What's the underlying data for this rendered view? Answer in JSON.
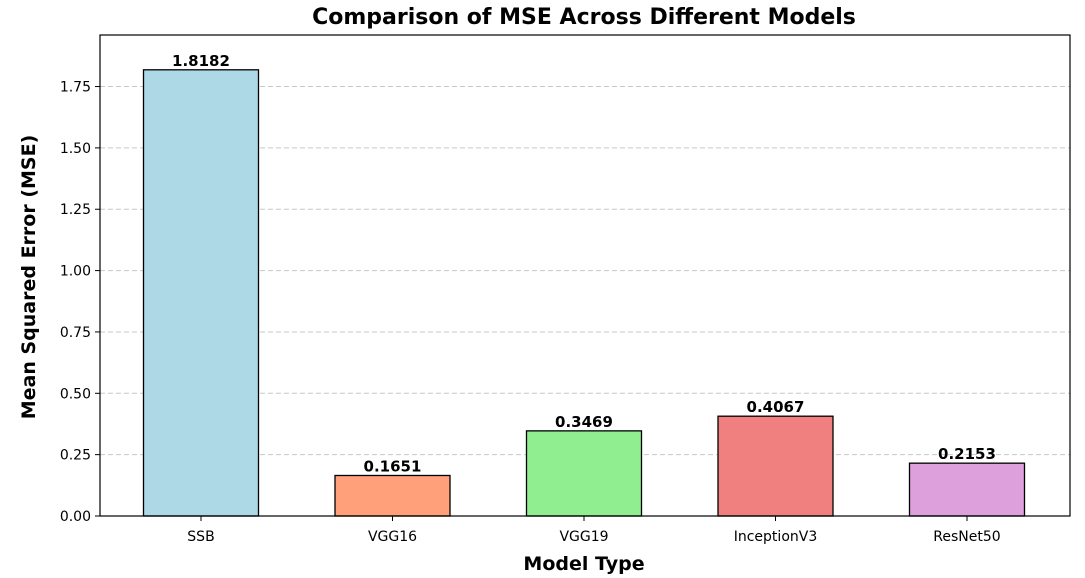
{
  "chart_data": {
    "type": "bar",
    "title": "Comparison of MSE Across Different Models",
    "xlabel": "Model Type",
    "ylabel": "Mean Squared Error (MSE)",
    "categories": [
      "SSB",
      "VGG16",
      "VGG19",
      "InceptionV3",
      "ResNet50"
    ],
    "values": [
      1.8182,
      0.1651,
      0.3469,
      0.4067,
      0.2153
    ],
    "value_labels": [
      "1.8182",
      "0.1651",
      "0.3469",
      "0.4067",
      "0.2153"
    ],
    "colors": [
      "#add8e6",
      "#ffa07a",
      "#90ee90",
      "#f08080",
      "#dda0dd"
    ],
    "ylim": [
      0,
      1.96
    ],
    "yticks": [
      0.0,
      0.25,
      0.5,
      0.75,
      1.0,
      1.25,
      1.5,
      1.75
    ],
    "ytick_labels": [
      "0.00",
      "0.25",
      "0.50",
      "0.75",
      "1.00",
      "1.25",
      "1.50",
      "1.75"
    ],
    "grid": "y-dashed",
    "legend": "none"
  }
}
